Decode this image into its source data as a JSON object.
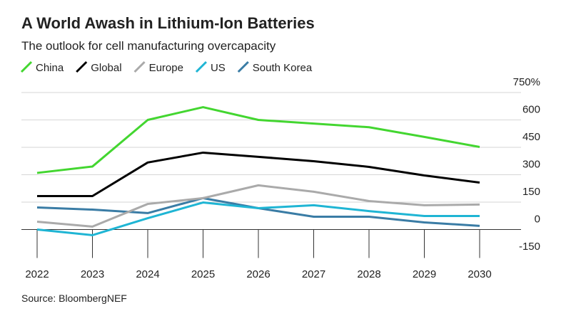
{
  "chart_data": {
    "type": "line",
    "title": "A World Awash in Lithium-Ion Batteries",
    "subtitle": "The outlook for cell manufacturing overcapacity",
    "source": "Source: BloombergNEF",
    "categories": [
      "2022",
      "2023",
      "2024",
      "2025",
      "2026",
      "2027",
      "2028",
      "2029",
      "2030"
    ],
    "series": [
      {
        "name": "China",
        "color": "#43d630",
        "values": [
          310,
          345,
          600,
          670,
          600,
          580,
          560,
          507,
          452
        ]
      },
      {
        "name": "Global",
        "color": "#000000",
        "values": [
          183,
          183,
          367,
          421,
          398,
          374,
          343,
          296,
          257
        ]
      },
      {
        "name": "Europe",
        "color": "#aaaaaa",
        "values": [
          43,
          16,
          140,
          172,
          242,
          207,
          156,
          133,
          137
        ]
      },
      {
        "name": "US",
        "color": "#1fb5d4",
        "values": [
          0,
          -31,
          62,
          148,
          117,
          133,
          101,
          74,
          74
        ]
      },
      {
        "name": "South Korea",
        "color": "#3a7ca5",
        "values": [
          121,
          109,
          90,
          172,
          117,
          70,
          70,
          39,
          20
        ]
      }
    ],
    "ylim": [
      -150,
      750
    ],
    "yticks": [
      {
        "value": 750,
        "label": "750%"
      },
      600,
      450,
      300,
      150,
      0,
      -150
    ],
    "grid": true
  }
}
